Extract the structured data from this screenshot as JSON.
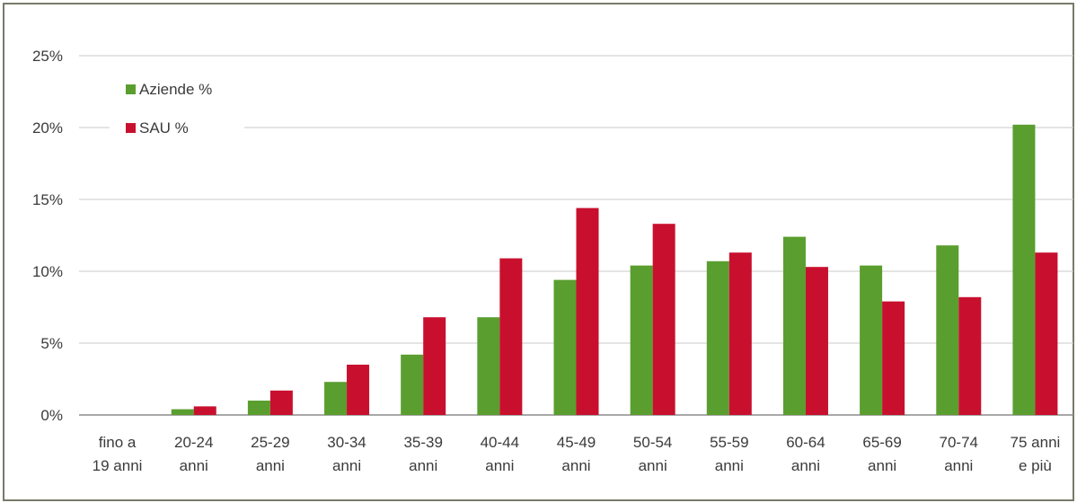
{
  "chart_data": {
    "type": "bar",
    "title": "",
    "xlabel": "",
    "ylabel": "",
    "ylim": [
      0,
      25
    ],
    "y_ticks": [
      "0%",
      "5%",
      "10%",
      "15%",
      "20%",
      "25%"
    ],
    "y_tick_values": [
      0,
      5,
      10,
      15,
      20,
      25
    ],
    "grid": true,
    "legend_position": "top-left",
    "categories": [
      [
        "fino a",
        "19 anni"
      ],
      [
        "20-24",
        "anni"
      ],
      [
        "25-29",
        "anni"
      ],
      [
        "30-34",
        "anni"
      ],
      [
        "35-39",
        "anni"
      ],
      [
        "40-44",
        "anni"
      ],
      [
        "45-49",
        "anni"
      ],
      [
        "50-54",
        "anni"
      ],
      [
        "55-59",
        "anni"
      ],
      [
        "60-64",
        "anni"
      ],
      [
        "65-69",
        "anni"
      ],
      [
        "70-74",
        "anni"
      ],
      [
        "75 anni",
        "e più"
      ]
    ],
    "series": [
      {
        "name": "Aziende %",
        "color": "#5a9e2f",
        "values": [
          0.0,
          0.4,
          1.0,
          2.3,
          4.2,
          6.8,
          9.4,
          10.4,
          10.7,
          12.4,
          10.4,
          11.8,
          20.2
        ]
      },
      {
        "name": "SAU %",
        "color": "#c8102e",
        "values": [
          0.0,
          0.6,
          1.7,
          3.5,
          6.8,
          10.9,
          14.4,
          13.3,
          11.3,
          10.3,
          7.9,
          8.2,
          11.3
        ]
      }
    ]
  }
}
